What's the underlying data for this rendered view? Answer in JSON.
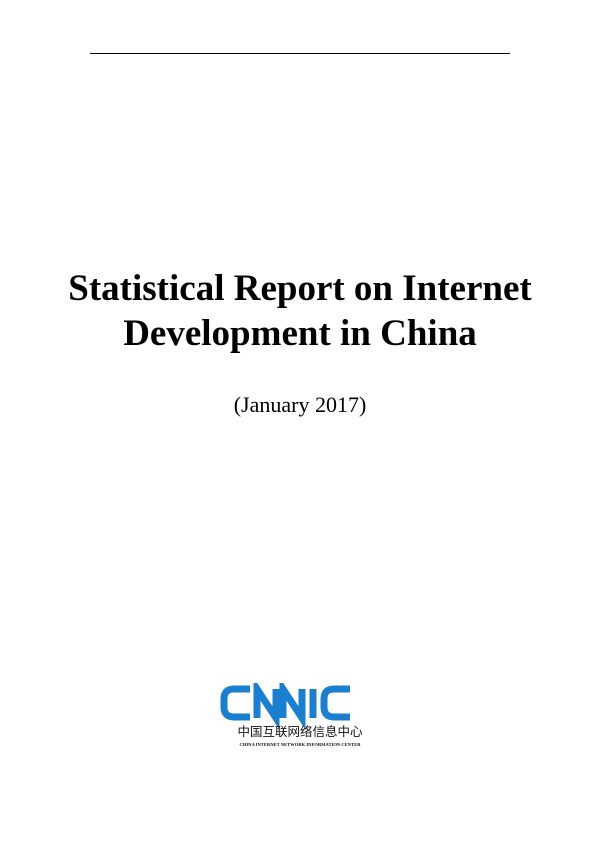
{
  "title": {
    "line1": "Statistical Report on Internet",
    "line2": "Development in China"
  },
  "subtitle": "(January 2017)",
  "logo": {
    "wordmark": "CNNIC",
    "chinese_name": "中国互联网络信息中心",
    "english_name": "CHINA INTERNET NETWORK INFORMATION CENTER",
    "color": "#1a7fd0"
  }
}
